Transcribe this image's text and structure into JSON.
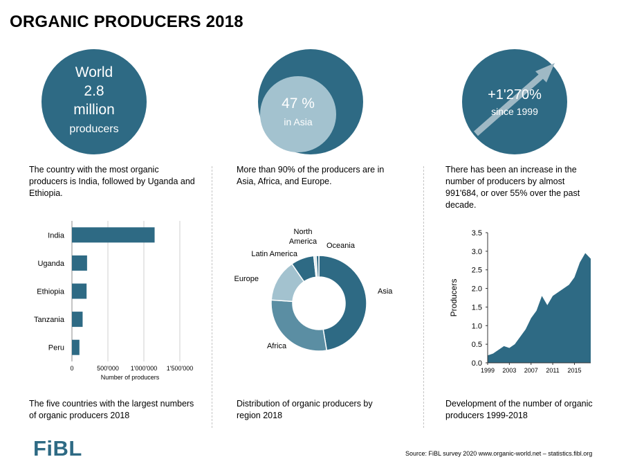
{
  "title": "ORGANIC PRODUCERS 2018",
  "stats": {
    "world": {
      "line1": "World",
      "line2": "2.8",
      "line3": "million",
      "line4": "producers"
    },
    "asia": {
      "value": "47 %",
      "label": "in Asia",
      "share": 0.47
    },
    "growth": {
      "value": "+1'270%",
      "label": "since 1999"
    }
  },
  "descriptions": {
    "left": "The country with the most organic producers is India, followed by Uganda and Ethiopia.",
    "middle": "More than 90% of the producers are in Asia, Africa, and Europe.",
    "right": "There has been an increase in the number of producers by almost 991'684, or over 55% over the past decade."
  },
  "captions": {
    "left": "The five countries with the largest numbers of organic producers 2018",
    "middle": "Distribution of organic producers by region 2018",
    "right": "Development of the number of organic producers 1999-2018"
  },
  "colors": {
    "primary": "#2e6a84",
    "mid": "#5b8ea3",
    "light": "#a3c2cf",
    "pale": "#d6e4ea"
  },
  "footer": {
    "logo": "FiBL",
    "source": "Source: FiBL survey 2020  www.organic-world.net – statistics.fibl.org"
  },
  "chart_data": [
    {
      "type": "bar",
      "orientation": "horizontal",
      "categories": [
        "India",
        "Uganda",
        "Ethiopia",
        "Tanzania",
        "Peru"
      ],
      "values": [
        1149371,
        210352,
        203602,
        148610,
        104000
      ],
      "xlabel": "Number of producers",
      "xlim": [
        0,
        1500000
      ],
      "xticks": [
        0,
        500000,
        1000000,
        1500000
      ],
      "xtick_labels": [
        "0",
        "500'000",
        "1'000'000",
        "1'500'000"
      ],
      "grid": true
    },
    {
      "type": "pie",
      "donut": true,
      "categories": [
        "Asia",
        "Africa",
        "Europe",
        "Latin America",
        "North America",
        "Oceania"
      ],
      "values": [
        47.0,
        28.5,
        14.2,
        7.8,
        0.8,
        0.9
      ],
      "colors": [
        "#2e6a84",
        "#5b8ea3",
        "#a3c2cf",
        "#2e6a84",
        "#d6e4ea",
        "#2e6a84"
      ]
    },
    {
      "type": "area",
      "x": [
        1999,
        2000,
        2001,
        2002,
        2003,
        2004,
        2005,
        2006,
        2007,
        2008,
        2009,
        2010,
        2011,
        2012,
        2013,
        2014,
        2015,
        2016,
        2017,
        2018
      ],
      "values": [
        0.2,
        0.25,
        0.35,
        0.45,
        0.4,
        0.5,
        0.7,
        0.9,
        1.2,
        1.4,
        1.8,
        1.55,
        1.8,
        1.9,
        2.0,
        2.1,
        2.3,
        2.7,
        2.95,
        2.8
      ],
      "ylabel": "Producers",
      "ylim": [
        0,
        3.5
      ],
      "yticks": [
        0.0,
        0.5,
        1.0,
        1.5,
        2.0,
        2.5,
        3.0,
        3.5
      ],
      "ytick_labels": [
        "0.0",
        "0.5",
        "1.0",
        "1.5",
        "2.0",
        "2.5",
        "3.0",
        "3.5"
      ],
      "xtick_labels": [
        "1999",
        "2003",
        "2007",
        "2011",
        "2015"
      ],
      "xtick_years": [
        1999,
        2003,
        2007,
        2011,
        2015
      ]
    }
  ]
}
